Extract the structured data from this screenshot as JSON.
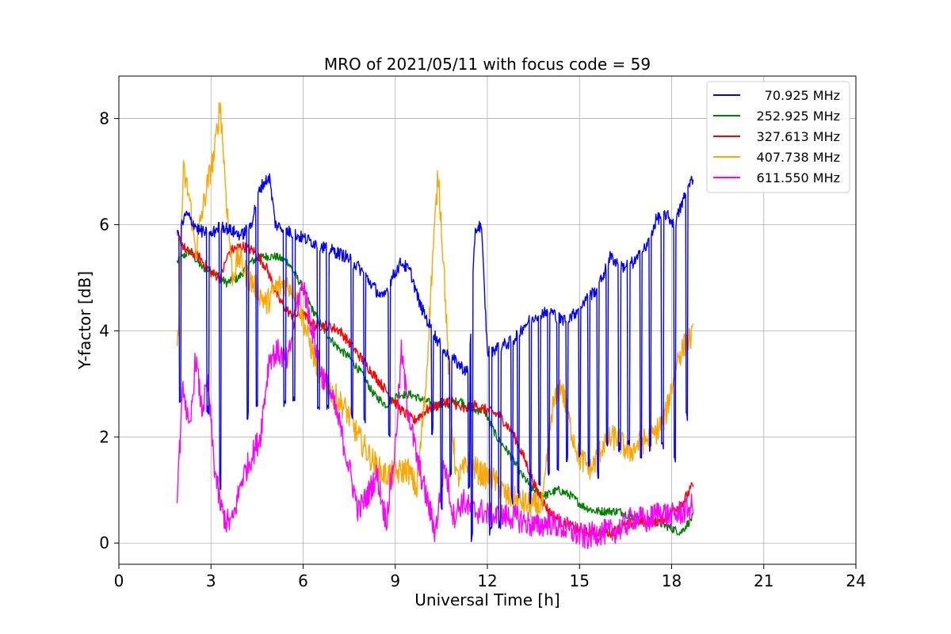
{
  "chart_data": {
    "type": "line",
    "title": "MRO of 2021/05/11 with focus code = 59",
    "xlabel": "Universal Time [h]",
    "ylabel": "Y-factor [dB]",
    "xlim": [
      0,
      24
    ],
    "ylim": [
      -0.4,
      8.8
    ],
    "xticks": [
      0,
      3,
      6,
      9,
      12,
      15,
      18,
      21,
      24
    ],
    "yticks": [
      0,
      2,
      4,
      6,
      8
    ],
    "grid": true,
    "legend_position": "top-right",
    "series": [
      {
        "name": "70.925 MHz",
        "color": "#0000ff",
        "x": [
          1.9,
          2.2,
          2.6,
          3.0,
          3.3,
          3.6,
          4.0,
          4.3,
          4.6,
          4.9,
          5.1,
          5.4,
          5.8,
          6.2,
          6.6,
          7.0,
          7.4,
          7.8,
          8.2,
          8.6,
          8.9,
          9.2,
          9.5,
          9.8,
          10.2,
          10.6,
          11.0,
          11.4,
          11.6,
          11.8,
          12.0,
          12.4,
          12.8,
          13.2,
          13.6,
          14.0,
          14.4,
          14.8,
          15.2,
          15.6,
          16.0,
          16.4,
          16.8,
          17.2,
          17.5,
          17.8,
          18.1,
          18.4,
          18.7
        ],
        "y": [
          5.8,
          6.2,
          5.9,
          5.8,
          6.0,
          5.9,
          5.8,
          6.0,
          6.7,
          6.9,
          6.0,
          5.9,
          5.8,
          5.7,
          5.6,
          5.5,
          5.4,
          5.2,
          4.9,
          4.6,
          5.0,
          5.3,
          5.1,
          4.5,
          4.0,
          3.6,
          3.4,
          3.2,
          5.9,
          6.0,
          3.6,
          3.7,
          3.8,
          4.1,
          4.3,
          4.4,
          4.2,
          4.3,
          4.6,
          4.8,
          5.4,
          5.2,
          5.3,
          5.6,
          6.1,
          6.2,
          6.0,
          6.5,
          6.9
        ],
        "dips": [
          2.0,
          2.9,
          3.3,
          4.2,
          4.5,
          5.4,
          5.7,
          6.5,
          6.8,
          7.6,
          8.0,
          8.8,
          10.2,
          10.5,
          10.8,
          11.4,
          11.5,
          12.1,
          12.4,
          12.8,
          13.0,
          13.4,
          13.7,
          14.0,
          14.3,
          14.6,
          15.0,
          15.3,
          15.6,
          15.9,
          16.3,
          16.6,
          17.0,
          17.3,
          17.7,
          18.1,
          18.5
        ],
        "dip_depth": [
          2.6,
          2.4,
          1.0,
          2.3,
          2.5,
          2.5,
          2.6,
          2.5,
          2.4,
          2.3,
          2.2,
          2.0,
          2.0,
          0.6,
          1.2,
          1.0,
          0.0,
          0.1,
          0.2,
          0.7,
          0.8,
          0.7,
          1.0,
          1.2,
          1.3,
          1.5,
          1.5,
          1.4,
          1.2,
          1.8,
          1.7,
          1.8,
          1.6,
          1.7,
          1.7,
          1.5,
          2.3
        ]
      },
      {
        "name": "252.925 MHz",
        "color": "#008000",
        "x": [
          1.9,
          2.3,
          2.7,
          3.1,
          3.5,
          3.9,
          4.3,
          4.7,
          5.1,
          5.5,
          5.9,
          6.3,
          6.7,
          7.1,
          7.5,
          7.9,
          8.3,
          8.7,
          9.1,
          9.5,
          9.9,
          10.3,
          10.7,
          11.1,
          11.5,
          11.9,
          12.3,
          12.7,
          13.1,
          13.5,
          13.9,
          14.3,
          14.7,
          15.1,
          15.5,
          15.9,
          16.3,
          16.7,
          17.1,
          17.5,
          17.9,
          18.3,
          18.7
        ],
        "y": [
          5.3,
          5.5,
          5.2,
          5.1,
          4.9,
          5.0,
          5.3,
          5.4,
          5.4,
          5.3,
          4.9,
          4.4,
          4.0,
          3.7,
          3.5,
          3.2,
          2.8,
          2.6,
          2.8,
          2.8,
          2.7,
          2.6,
          2.6,
          2.7,
          2.5,
          2.5,
          2.0,
          1.7,
          1.3,
          1.0,
          0.9,
          1.0,
          0.9,
          0.7,
          0.6,
          0.6,
          0.6,
          0.5,
          0.4,
          0.4,
          0.3,
          0.2,
          0.5
        ]
      },
      {
        "name": "327.613 MHz",
        "color": "#ff0000",
        "x": [
          1.9,
          2.2,
          2.6,
          3.0,
          3.3,
          3.6,
          4.0,
          4.4,
          4.8,
          5.2,
          5.6,
          6.0,
          6.4,
          6.8,
          7.2,
          7.6,
          8.0,
          8.4,
          8.8,
          9.2,
          9.6,
          10.0,
          10.4,
          10.8,
          11.2,
          11.6,
          12.0,
          12.4,
          12.8,
          13.2,
          13.6,
          14.0,
          14.4,
          14.8,
          15.2,
          15.6,
          16.0,
          16.4,
          16.8,
          17.2,
          17.6,
          18.0,
          18.4,
          18.7
        ],
        "y": [
          5.8,
          5.5,
          5.4,
          5.1,
          5.0,
          5.5,
          5.6,
          5.5,
          5.2,
          4.6,
          4.3,
          4.3,
          4.1,
          4.1,
          4.0,
          3.7,
          3.4,
          3.1,
          2.8,
          2.5,
          2.3,
          2.5,
          2.6,
          2.7,
          2.5,
          2.6,
          2.5,
          2.4,
          2.1,
          1.6,
          1.0,
          0.6,
          0.4,
          0.3,
          0.2,
          0.2,
          0.2,
          0.3,
          0.4,
          0.4,
          0.4,
          0.6,
          0.8,
          1.1
        ]
      },
      {
        "name": "407.738 MHz",
        "color": "#ffa500",
        "x": [
          1.9,
          2.1,
          2.3,
          2.5,
          2.7,
          2.9,
          3.1,
          3.3,
          3.5,
          3.7,
          3.9,
          4.2,
          4.5,
          4.8,
          5.1,
          5.4,
          5.7,
          6.0,
          6.3,
          6.6,
          7.0,
          7.4,
          7.8,
          8.2,
          8.6,
          9.0,
          9.4,
          9.7,
          10.0,
          10.2,
          10.4,
          10.6,
          10.8,
          11.0,
          11.4,
          11.8,
          12.2,
          12.6,
          13.0,
          13.4,
          13.8,
          14.1,
          14.4,
          14.7,
          15.0,
          15.4,
          15.8,
          16.2,
          16.6,
          17.0,
          17.4,
          17.8,
          18.2,
          18.5,
          18.7
        ],
        "y": [
          3.5,
          7.0,
          6.5,
          5.5,
          6.2,
          6.8,
          7.3,
          8.3,
          6.5,
          5.0,
          5.4,
          5.0,
          4.8,
          4.5,
          4.8,
          4.9,
          4.8,
          4.2,
          3.6,
          3.1,
          2.8,
          2.5,
          2.0,
          1.6,
          1.3,
          1.3,
          1.4,
          1.0,
          3.0,
          5.2,
          7.0,
          5.0,
          2.5,
          1.2,
          1.5,
          1.3,
          1.2,
          0.9,
          0.8,
          0.7,
          0.7,
          2.5,
          3.0,
          2.2,
          1.6,
          1.4,
          1.9,
          2.0,
          1.7,
          1.9,
          2.0,
          2.4,
          3.5,
          3.8,
          3.9
        ]
      },
      {
        "name": "611.550 MHz",
        "color": "#ff00ff",
        "x": [
          1.9,
          2.1,
          2.3,
          2.5,
          2.7,
          2.9,
          3.1,
          3.3,
          3.5,
          3.7,
          4.0,
          4.3,
          4.6,
          4.9,
          5.2,
          5.5,
          5.8,
          6.0,
          6.3,
          6.6,
          6.9,
          7.2,
          7.5,
          7.8,
          8.1,
          8.4,
          8.7,
          9.0,
          9.2,
          9.4,
          9.7,
          10.0,
          10.3,
          10.6,
          10.9,
          11.2,
          11.5,
          11.8,
          12.1,
          12.4,
          12.8,
          13.2,
          13.6,
          14.0,
          14.4,
          14.8,
          15.2,
          15.6,
          16.0,
          16.4,
          16.8,
          17.2,
          17.6,
          18.0,
          18.4,
          18.7
        ],
        "y": [
          1.0,
          3.0,
          2.0,
          3.5,
          2.5,
          3.0,
          1.5,
          0.7,
          0.4,
          0.4,
          1.2,
          1.6,
          2.0,
          3.5,
          3.6,
          3.4,
          4.5,
          4.9,
          4.0,
          3.2,
          2.8,
          2.2,
          1.4,
          0.6,
          0.9,
          1.3,
          0.4,
          1.8,
          3.6,
          2.6,
          1.6,
          0.9,
          0.2,
          1.5,
          0.5,
          0.8,
          0.6,
          0.6,
          0.5,
          0.5,
          0.5,
          0.4,
          0.3,
          0.4,
          0.3,
          0.2,
          0.1,
          0.2,
          0.2,
          0.3,
          0.5,
          0.4,
          0.6,
          0.5,
          0.6,
          0.7
        ]
      }
    ]
  }
}
